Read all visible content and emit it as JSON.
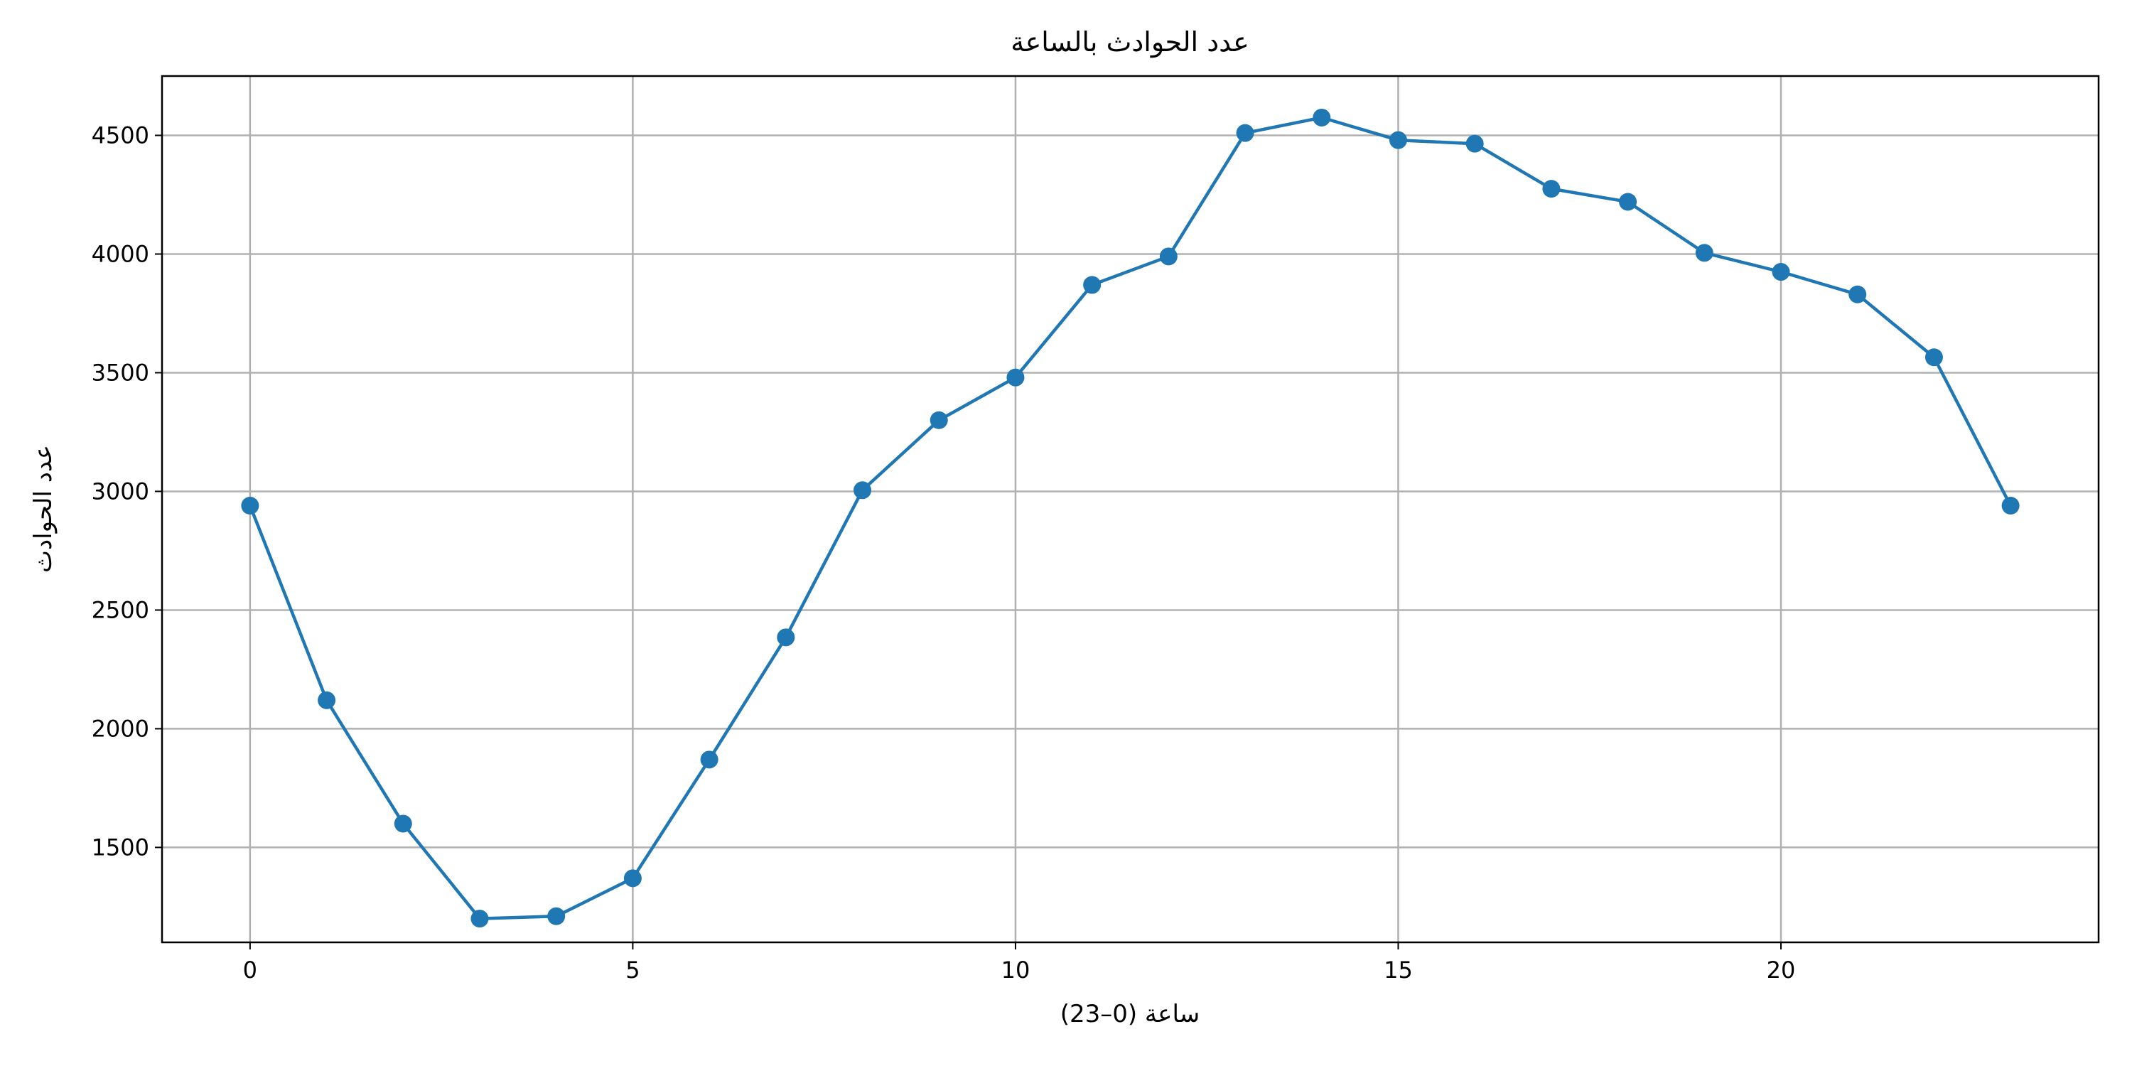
{
  "chart_data": {
    "type": "line",
    "title": "عدد الحوادث بالساعة",
    "xlabel": "ساعة (0–23)",
    "ylabel": "عدد الحوادث",
    "xlim": [
      -1.15,
      24.15
    ],
    "ylim": [
      1100,
      4750
    ],
    "xticks": [
      0,
      5,
      10,
      15,
      20
    ],
    "yticks": [
      1500,
      2000,
      2500,
      3000,
      3500,
      4000,
      4500
    ],
    "grid": true,
    "marker": "circle",
    "color": "#1f77b4",
    "series": [
      {
        "x": [
          0,
          1,
          2,
          3,
          4,
          5,
          6,
          7,
          8,
          9,
          10,
          11,
          12,
          13,
          14,
          15,
          16,
          17,
          18,
          19,
          20,
          21,
          22,
          23
        ],
        "values": [
          2940,
          2120,
          1600,
          1200,
          1210,
          1370,
          1870,
          2385,
          3005,
          3300,
          3480,
          3870,
          3990,
          4510,
          4575,
          4480,
          4465,
          4275,
          4220,
          4005,
          3925,
          3830,
          3565,
          2940
        ]
      }
    ]
  }
}
